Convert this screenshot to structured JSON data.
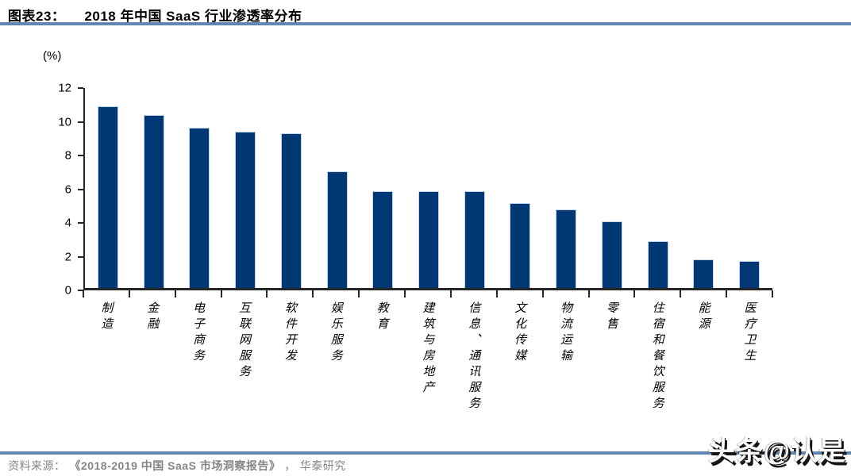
{
  "header": {
    "label": "图表23：",
    "title": "2018 年中国 SaaS 行业渗透率分布"
  },
  "chart_data": {
    "type": "bar",
    "title": "2018 年中国 SaaS 行业渗透率分布",
    "unit_label": "(%)",
    "categories": [
      "制造",
      "金融",
      "电子商务",
      "互联网服务",
      "软件开发",
      "娱乐服务",
      "教育",
      "建筑与房地产",
      "信息、通讯服务",
      "文化传媒",
      "物流运输",
      "零售",
      "住宿和餐饮服务",
      "能源",
      "医疗卫生"
    ],
    "values": [
      10.9,
      10.4,
      9.6,
      9.4,
      9.3,
      7.0,
      5.8,
      5.8,
      5.8,
      5.1,
      4.7,
      4.0,
      2.8,
      1.7,
      1.6
    ],
    "xlabel": "",
    "ylabel": "(%)",
    "ylim": [
      0,
      12
    ],
    "yticks": [
      0,
      2,
      4,
      6,
      8,
      10,
      12
    ],
    "grid": false,
    "legend": "none",
    "bar_color": "#003876"
  },
  "footer": {
    "source_label": "资料来源：",
    "source_title": "《2018-2019 中国 SaaS 市场洞察报告》",
    "source_suffix": "， 华泰研究"
  },
  "watermark": {
    "text": "头条@认是"
  },
  "colors": {
    "bar": "#003876",
    "rule": "#6286b2",
    "axis": "#262626",
    "footer_text": "#848484"
  }
}
